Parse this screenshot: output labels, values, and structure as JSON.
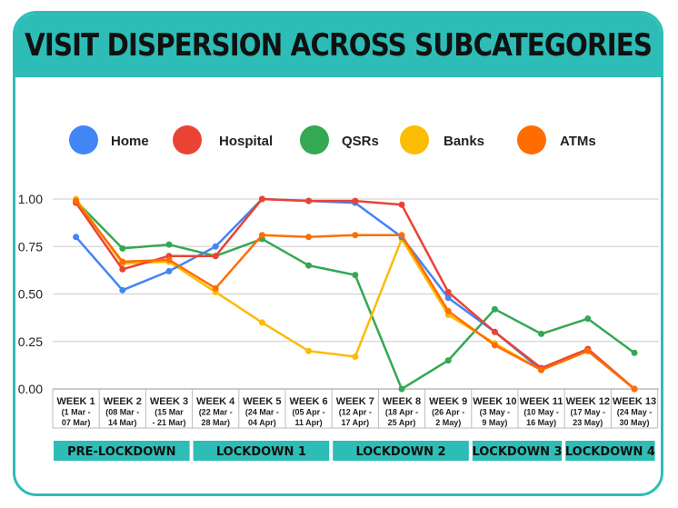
{
  "chart_data": {
    "type": "line",
    "title": "VISIT DISPERSION ACROSS SUBCATEGORIES",
    "categories": [
      [
        "WEEK 1",
        "(1 Mar -",
        "07 Mar)"
      ],
      [
        "WEEK 2",
        "(08 Mar -",
        "14 Mar)"
      ],
      [
        "WEEK 3",
        "(15 Mar",
        "- 21 Mar)"
      ],
      [
        "WEEK 4",
        "(22 Mar -",
        "28 Mar)"
      ],
      [
        "WEEK 5",
        "(24 Mar -",
        "04 Apr)"
      ],
      [
        "WEEK 6",
        "(05 Apr -",
        "11 Apr)"
      ],
      [
        "WEEK 7",
        "(12 Apr -",
        "17 Apr)"
      ],
      [
        "WEEK 8",
        "(18 Apr -",
        "25 Apr)"
      ],
      [
        "WEEK 9",
        "(26 Apr -",
        "2 May)"
      ],
      [
        "WEEK 10",
        "(3 May -",
        "9 May)"
      ],
      [
        "WEEK 11",
        "(10 May -",
        "16 May)"
      ],
      [
        "WEEK 12",
        "(17 May -",
        "23 May)"
      ],
      [
        "WEEK 13",
        "(24 May -",
        "30 May)"
      ]
    ],
    "ylim": [
      0,
      1
    ],
    "yticks": [
      "0.00",
      "0.25",
      "0.50",
      "0.75",
      "1.00"
    ],
    "grid": true,
    "legend_position": "top",
    "series": [
      {
        "name": "Home",
        "color": "#4285f4",
        "values": [
          0.8,
          0.52,
          0.62,
          0.75,
          1.0,
          0.99,
          0.98,
          0.8,
          0.48,
          0.3,
          0.1,
          0.21,
          0.0
        ]
      },
      {
        "name": "Hospital",
        "color": "#ea4335",
        "values": [
          0.98,
          0.63,
          0.7,
          0.7,
          1.0,
          0.99,
          0.99,
          0.97,
          0.51,
          0.3,
          0.11,
          0.21,
          0.0
        ]
      },
      {
        "name": "QSRs",
        "color": "#34a853",
        "values": [
          0.99,
          0.74,
          0.76,
          0.7,
          0.79,
          0.65,
          0.6,
          0.0,
          0.15,
          0.42,
          0.29,
          0.37,
          0.19
        ]
      },
      {
        "name": "Banks",
        "color": "#fbbc04",
        "values": [
          1.0,
          0.66,
          0.67,
          0.51,
          0.35,
          0.2,
          0.17,
          0.79,
          0.39,
          0.24,
          0.1,
          0.2,
          0.0
        ]
      },
      {
        "name": "ATMs",
        "color": "#ff6d01",
        "values": [
          0.99,
          0.67,
          0.68,
          0.53,
          0.81,
          0.8,
          0.81,
          0.81,
          0.41,
          0.23,
          0.1,
          0.2,
          0.0
        ]
      }
    ],
    "phases": [
      {
        "label": "PRE-LOCKDOWN",
        "weeks": [
          1,
          3
        ]
      },
      {
        "label": "LOCKDOWN 1",
        "weeks": [
          4,
          6
        ]
      },
      {
        "label": "LOCKDOWN 2",
        "weeks": [
          7,
          9
        ]
      },
      {
        "label": "LOCKDOWN 3",
        "weeks": [
          10,
          11
        ]
      },
      {
        "label": "LOCKDOWN 4",
        "weeks": [
          12,
          13
        ]
      }
    ],
    "colors": {
      "accent": "#2dbdb6",
      "grid": "#cccccc",
      "text": "#222222"
    }
  }
}
